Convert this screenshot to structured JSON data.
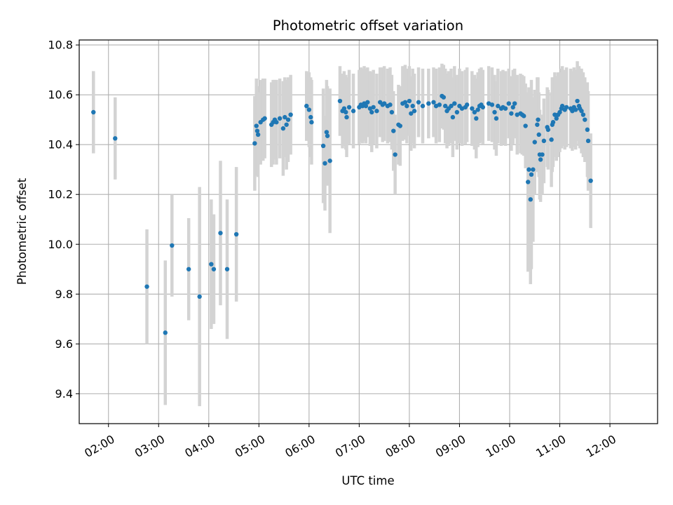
{
  "chart_data": {
    "type": "scatter",
    "title": "Photometric offset variation",
    "xlabel": "UTC time",
    "ylabel": "Photometric offset",
    "xlim": [
      "01:25",
      "12:57"
    ],
    "ylim": [
      9.28,
      10.82
    ],
    "grid": true,
    "x_ticks": [
      "02:00",
      "03:00",
      "04:00",
      "05:00",
      "06:00",
      "07:00",
      "08:00",
      "09:00",
      "10:00",
      "11:00",
      "12:00"
    ],
    "y_ticks": [
      "9.4",
      "9.6",
      "9.8",
      "10.0",
      "10.2",
      "10.4",
      "10.6",
      "10.8"
    ],
    "colors": {
      "points": "#1f77b4",
      "errorbars": "#d3d3d3",
      "grid": "#b0b0b0"
    },
    "series": [
      {
        "points": [
          [
            "01:42",
            10.53,
            0.165
          ],
          [
            "02:08",
            10.425,
            0.165
          ],
          [
            "02:46",
            9.83,
            0.23
          ],
          [
            "03:08",
            9.645,
            0.29
          ],
          [
            "03:16",
            9.995,
            0.205
          ],
          [
            "03:36",
            9.9,
            0.205
          ],
          [
            "03:49",
            9.79,
            0.44
          ],
          [
            "04:03",
            9.92,
            0.26
          ],
          [
            "04:06",
            9.9,
            0.22
          ],
          [
            "04:14",
            10.045,
            0.29
          ],
          [
            "04:22",
            9.9,
            0.28
          ],
          [
            "04:33",
            10.04,
            0.27
          ],
          [
            "04:55",
            10.405,
            0.19
          ],
          [
            "04:57",
            10.475,
            0.19
          ],
          [
            "04:58",
            10.455,
            0.18
          ],
          [
            "04:59",
            10.44,
            0.17
          ],
          [
            "05:02",
            10.49,
            0.17
          ],
          [
            "05:05",
            10.5,
            0.165
          ],
          [
            "05:07",
            10.505,
            0.16
          ],
          [
            "05:15",
            10.48,
            0.17
          ],
          [
            "05:17",
            10.49,
            0.17
          ],
          [
            "05:19",
            10.5,
            0.16
          ],
          [
            "05:21",
            10.49,
            0.17
          ],
          [
            "05:25",
            10.505,
            0.16
          ],
          [
            "05:29",
            10.465,
            0.19
          ],
          [
            "05:31",
            10.51,
            0.16
          ],
          [
            "05:33",
            10.48,
            0.18
          ],
          [
            "05:35",
            10.5,
            0.17
          ],
          [
            "05:38",
            10.52,
            0.16
          ],
          [
            "05:57",
            10.555,
            0.14
          ],
          [
            "06:00",
            10.54,
            0.15
          ],
          [
            "06:02",
            10.51,
            0.16
          ],
          [
            "06:03",
            10.49,
            0.17
          ],
          [
            "06:17",
            10.395,
            0.23
          ],
          [
            "06:19",
            10.325,
            0.19
          ],
          [
            "06:21",
            10.45,
            0.21
          ],
          [
            "06:22",
            10.435,
            0.2
          ],
          [
            "06:25",
            10.335,
            0.29
          ],
          [
            "06:37",
            10.575,
            0.14
          ],
          [
            "06:40",
            10.535,
            0.15
          ],
          [
            "06:42",
            10.545,
            0.15
          ],
          [
            "06:44",
            10.53,
            0.15
          ],
          [
            "06:45",
            10.51,
            0.16
          ],
          [
            "06:48",
            10.55,
            0.15
          ],
          [
            "06:53",
            10.535,
            0.15
          ],
          [
            "07:00",
            10.55,
            0.15
          ],
          [
            "07:02",
            10.56,
            0.15
          ],
          [
            "07:04",
            10.555,
            0.15
          ],
          [
            "07:06",
            10.565,
            0.15
          ],
          [
            "07:08",
            10.555,
            0.15
          ],
          [
            "07:10",
            10.57,
            0.14
          ],
          [
            "07:13",
            10.545,
            0.15
          ],
          [
            "07:15",
            10.53,
            0.16
          ],
          [
            "07:17",
            10.55,
            0.15
          ],
          [
            "07:21",
            10.535,
            0.15
          ],
          [
            "07:25",
            10.57,
            0.14
          ],
          [
            "07:28",
            10.56,
            0.15
          ],
          [
            "07:30",
            10.565,
            0.15
          ],
          [
            "07:34",
            10.555,
            0.15
          ],
          [
            "07:37",
            10.56,
            0.15
          ],
          [
            "07:39",
            10.53,
            0.15
          ],
          [
            "07:41",
            10.455,
            0.16
          ],
          [
            "07:43",
            10.36,
            0.16
          ],
          [
            "07:47",
            10.48,
            0.16
          ],
          [
            "07:49",
            10.475,
            0.16
          ],
          [
            "07:52",
            10.565,
            0.15
          ],
          [
            "07:55",
            10.57,
            0.15
          ],
          [
            "07:57",
            10.555,
            0.15
          ],
          [
            "08:00",
            10.575,
            0.14
          ],
          [
            "08:02",
            10.525,
            0.15
          ],
          [
            "08:04",
            10.555,
            0.15
          ],
          [
            "08:06",
            10.535,
            0.15
          ],
          [
            "08:11",
            10.57,
            0.14
          ],
          [
            "08:16",
            10.555,
            0.15
          ],
          [
            "08:23",
            10.565,
            0.14
          ],
          [
            "08:29",
            10.57,
            0.14
          ],
          [
            "08:32",
            10.555,
            0.15
          ],
          [
            "08:36",
            10.56,
            0.15
          ],
          [
            "08:39",
            10.595,
            0.13
          ],
          [
            "08:41",
            10.59,
            0.13
          ],
          [
            "08:43",
            10.555,
            0.15
          ],
          [
            "08:45",
            10.535,
            0.15
          ],
          [
            "08:47",
            10.545,
            0.15
          ],
          [
            "08:50",
            10.555,
            0.15
          ],
          [
            "08:52",
            10.51,
            0.16
          ],
          [
            "08:54",
            10.565,
            0.15
          ],
          [
            "08:57",
            10.53,
            0.15
          ],
          [
            "09:00",
            10.555,
            0.15
          ],
          [
            "09:03",
            10.545,
            0.15
          ],
          [
            "09:07",
            10.55,
            0.15
          ],
          [
            "09:09",
            10.56,
            0.15
          ],
          [
            "09:15",
            10.545,
            0.15
          ],
          [
            "09:18",
            10.53,
            0.15
          ],
          [
            "09:20",
            10.505,
            0.16
          ],
          [
            "09:22",
            10.54,
            0.15
          ],
          [
            "09:24",
            10.555,
            0.15
          ],
          [
            "09:26",
            10.56,
            0.15
          ],
          [
            "09:28",
            10.55,
            0.15
          ],
          [
            "09:35",
            10.565,
            0.15
          ],
          [
            "09:39",
            10.56,
            0.15
          ],
          [
            "09:42",
            10.53,
            0.15
          ],
          [
            "09:44",
            10.505,
            0.15
          ],
          [
            "09:46",
            10.555,
            0.15
          ],
          [
            "09:50",
            10.545,
            0.15
          ],
          [
            "09:52",
            10.55,
            0.15
          ],
          [
            "09:55",
            10.545,
            0.15
          ],
          [
            "09:59",
            10.565,
            0.14
          ],
          [
            "10:02",
            10.525,
            0.15
          ],
          [
            "10:04",
            10.55,
            0.15
          ],
          [
            "10:06",
            10.565,
            0.14
          ],
          [
            "10:09",
            10.52,
            0.16
          ],
          [
            "10:13",
            10.525,
            0.16
          ],
          [
            "10:15",
            10.52,
            0.16
          ],
          [
            "10:17",
            10.515,
            0.16
          ],
          [
            "10:19",
            10.475,
            0.17
          ],
          [
            "10:22",
            10.25,
            0.36
          ],
          [
            "10:23",
            10.3,
            0.33
          ],
          [
            "10:25",
            10.18,
            0.34
          ],
          [
            "10:26",
            10.28,
            0.38
          ],
          [
            "10:28",
            10.3,
            0.29
          ],
          [
            "10:30",
            10.41,
            0.21
          ],
          [
            "10:33",
            10.48,
            0.19
          ],
          [
            "10:34",
            10.5,
            0.17
          ],
          [
            "10:35",
            10.44,
            0.17
          ],
          [
            "10:36",
            10.36,
            0.18
          ],
          [
            "10:37",
            10.34,
            0.17
          ],
          [
            "10:39",
            10.36,
            0.16
          ],
          [
            "10:41",
            10.415,
            0.17
          ],
          [
            "10:45",
            10.47,
            0.16
          ],
          [
            "10:46",
            10.46,
            0.16
          ],
          [
            "10:50",
            10.42,
            0.19
          ],
          [
            "10:51",
            10.48,
            0.19
          ],
          [
            "10:52",
            10.49,
            0.18
          ],
          [
            "10:54",
            10.52,
            0.17
          ],
          [
            "10:56",
            10.505,
            0.17
          ],
          [
            "10:58",
            10.52,
            0.17
          ],
          [
            "11:00",
            10.53,
            0.16
          ],
          [
            "11:02",
            10.545,
            0.16
          ],
          [
            "11:03",
            10.555,
            0.16
          ],
          [
            "11:06",
            10.54,
            0.16
          ],
          [
            "11:08",
            10.55,
            0.16
          ],
          [
            "11:13",
            10.545,
            0.16
          ],
          [
            "11:15",
            10.535,
            0.16
          ],
          [
            "11:17",
            10.55,
            0.16
          ],
          [
            "11:19",
            10.54,
            0.16
          ],
          [
            "11:21",
            10.575,
            0.16
          ],
          [
            "11:23",
            10.555,
            0.16
          ],
          [
            "11:24",
            10.545,
            0.16
          ],
          [
            "11:26",
            10.535,
            0.17
          ],
          [
            "11:28",
            10.52,
            0.17
          ],
          [
            "11:30",
            10.5,
            0.17
          ],
          [
            "11:33",
            10.46,
            0.19
          ],
          [
            "11:34",
            10.415,
            0.2
          ],
          [
            "11:37",
            10.255,
            0.19
          ]
        ]
      }
    ]
  }
}
